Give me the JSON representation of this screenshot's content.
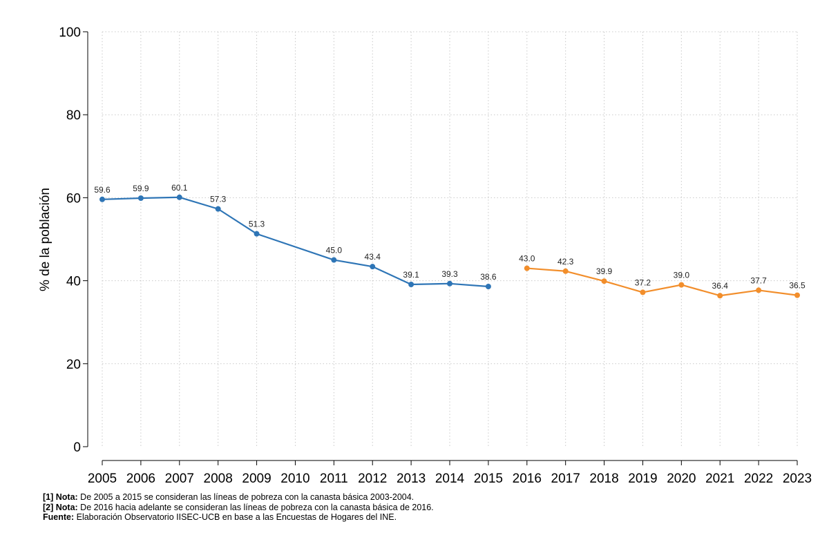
{
  "chart_data": {
    "type": "line",
    "ylabel": "% de la población",
    "xlabel": "",
    "ylim": [
      0,
      100
    ],
    "yticks": [
      0,
      20,
      40,
      60,
      80,
      100
    ],
    "x": [
      "2005",
      "2006",
      "2007",
      "2008",
      "2009",
      "2010",
      "2011",
      "2012",
      "2013",
      "2014",
      "2015",
      "2016",
      "2017",
      "2018",
      "2019",
      "2020",
      "2021",
      "2022",
      "2023"
    ],
    "grid": true,
    "series": [
      {
        "name": "Canasta básica 2003-2004",
        "color": "#2e75b6",
        "points": [
          {
            "x": "2005",
            "y": 59.6,
            "label": "59.6"
          },
          {
            "x": "2006",
            "y": 59.9,
            "label": "59.9"
          },
          {
            "x": "2007",
            "y": 60.1,
            "label": "60.1"
          },
          {
            "x": "2008",
            "y": 57.3,
            "label": "57.3"
          },
          {
            "x": "2009",
            "y": 51.3,
            "label": "51.3"
          },
          {
            "x": "2011",
            "y": 45.0,
            "label": "45.0"
          },
          {
            "x": "2012",
            "y": 43.4,
            "label": "43.4"
          },
          {
            "x": "2013",
            "y": 39.1,
            "label": "39.1"
          },
          {
            "x": "2014",
            "y": 39.3,
            "label": "39.3"
          },
          {
            "x": "2015",
            "y": 38.6,
            "label": "38.6"
          }
        ]
      },
      {
        "name": "Canasta básica 2016",
        "color": "#f28e2b",
        "points": [
          {
            "x": "2016",
            "y": 43.0,
            "label": "43.0"
          },
          {
            "x": "2017",
            "y": 42.3,
            "label": "42.3"
          },
          {
            "x": "2018",
            "y": 39.9,
            "label": "39.9"
          },
          {
            "x": "2019",
            "y": 37.2,
            "label": "37.2"
          },
          {
            "x": "2020",
            "y": 39.0,
            "label": "39.0"
          },
          {
            "x": "2021",
            "y": 36.4,
            "label": "36.4"
          },
          {
            "x": "2022",
            "y": 37.7,
            "label": "37.7"
          },
          {
            "x": "2023",
            "y": 36.5,
            "label": "36.5"
          }
        ]
      }
    ]
  },
  "notes": {
    "note1_label": "[1] Nota:",
    "note1_text": " De 2005 a 2015 se consideran las líneas de pobreza con la canasta básica 2003-2004.",
    "note2_label": "[2] Nota:",
    "note2_text": " De 2016 hacia adelante se consideran las líneas de pobreza con la canasta básica de 2016.",
    "source_label": "Fuente:",
    "source_text": " Elaboración Observatorio IISEC-UCB en base a las Encuestas de Hogares del INE."
  }
}
